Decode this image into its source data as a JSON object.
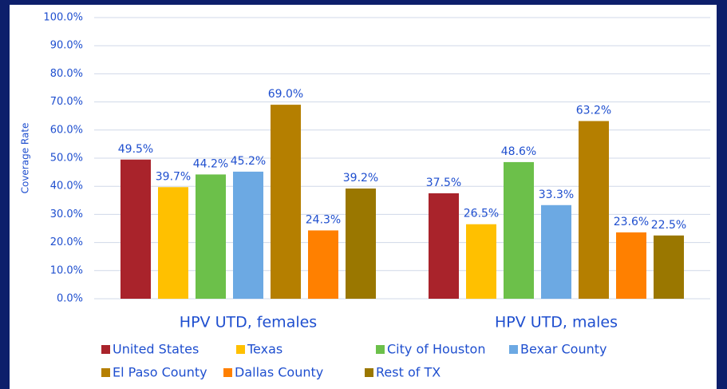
{
  "chart_data": {
    "type": "bar",
    "y_label": "Coverage Rate",
    "categories": [
      "HPV UTD, females",
      "HPV UTD, males"
    ],
    "series": [
      {
        "name": "United States",
        "color": "#a9232b",
        "values": [
          49.5,
          37.5
        ],
        "value_labels": [
          "49.5%",
          "37.5%"
        ]
      },
      {
        "name": "Texas",
        "color": "#ffc000",
        "values": [
          39.7,
          26.5
        ],
        "value_labels": [
          "39.7%",
          "26.5%"
        ]
      },
      {
        "name": "City of Houston",
        "color": "#6cc04a",
        "values": [
          44.2,
          48.6
        ],
        "value_labels": [
          "44.2%",
          "48.6%"
        ]
      },
      {
        "name": "Bexar County",
        "color": "#6ca9e3",
        "values": [
          45.2,
          33.3
        ],
        "value_labels": [
          "45.2%",
          "33.3%"
        ]
      },
      {
        "name": "El Paso County",
        "color": "#b57f00",
        "values": [
          69.0,
          63.2
        ],
        "value_labels": [
          "69.0%",
          "63.2%"
        ]
      },
      {
        "name": "Dallas County",
        "color": "#ff8000",
        "values": [
          24.3,
          23.6
        ],
        "value_labels": [
          "24.3%",
          "23.6%"
        ]
      },
      {
        "name": "Rest of TX",
        "color": "#9a7700",
        "values": [
          39.2,
          22.5
        ],
        "value_labels": [
          "39.2%",
          "22.5%"
        ]
      }
    ],
    "ylim": [
      0,
      100
    ],
    "yticks": [
      {
        "value": 0,
        "label": "0.0%"
      },
      {
        "value": 10,
        "label": "10.0%"
      },
      {
        "value": 20,
        "label": "20.0%"
      },
      {
        "value": 30,
        "label": "30.0%"
      },
      {
        "value": 40,
        "label": "40.0%"
      },
      {
        "value": 50,
        "label": "50.0%"
      },
      {
        "value": 60,
        "label": "60.0%"
      },
      {
        "value": 70,
        "label": "70.0%"
      },
      {
        "value": 80,
        "label": "80.0%"
      },
      {
        "value": 90,
        "label": "90.0%"
      },
      {
        "value": 100,
        "label": "100.0%"
      }
    ],
    "grid": true
  }
}
